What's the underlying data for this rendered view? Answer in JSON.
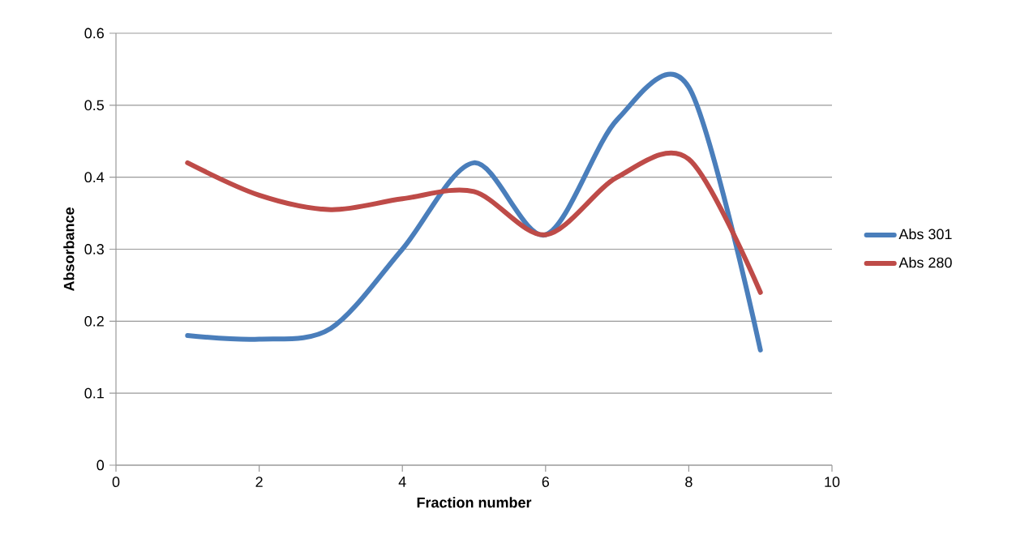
{
  "chart_data": {
    "type": "line",
    "xlabel": "Fraction number",
    "ylabel": "Absorbance",
    "x": [
      1,
      2,
      3,
      4,
      5,
      6,
      7,
      8,
      9
    ],
    "series": [
      {
        "name": "Abs 301",
        "color": "#4a7ebb",
        "values": [
          0.18,
          0.175,
          0.19,
          0.3,
          0.42,
          0.32,
          0.48,
          0.525,
          0.16
        ]
      },
      {
        "name": "Abs 280",
        "color": "#be4b48",
        "values": [
          0.42,
          0.375,
          0.355,
          0.37,
          0.38,
          0.32,
          0.4,
          0.425,
          0.24
        ]
      }
    ],
    "xlim": [
      0,
      10
    ],
    "xticks": [
      0,
      2,
      4,
      6,
      8,
      10
    ],
    "ylim": [
      0,
      0.6
    ],
    "yticks": [
      0,
      0.1,
      0.2,
      0.3,
      0.4,
      0.5,
      0.6
    ],
    "grid": "y",
    "legend": "right",
    "marker": "none",
    "line_style": "solid"
  }
}
